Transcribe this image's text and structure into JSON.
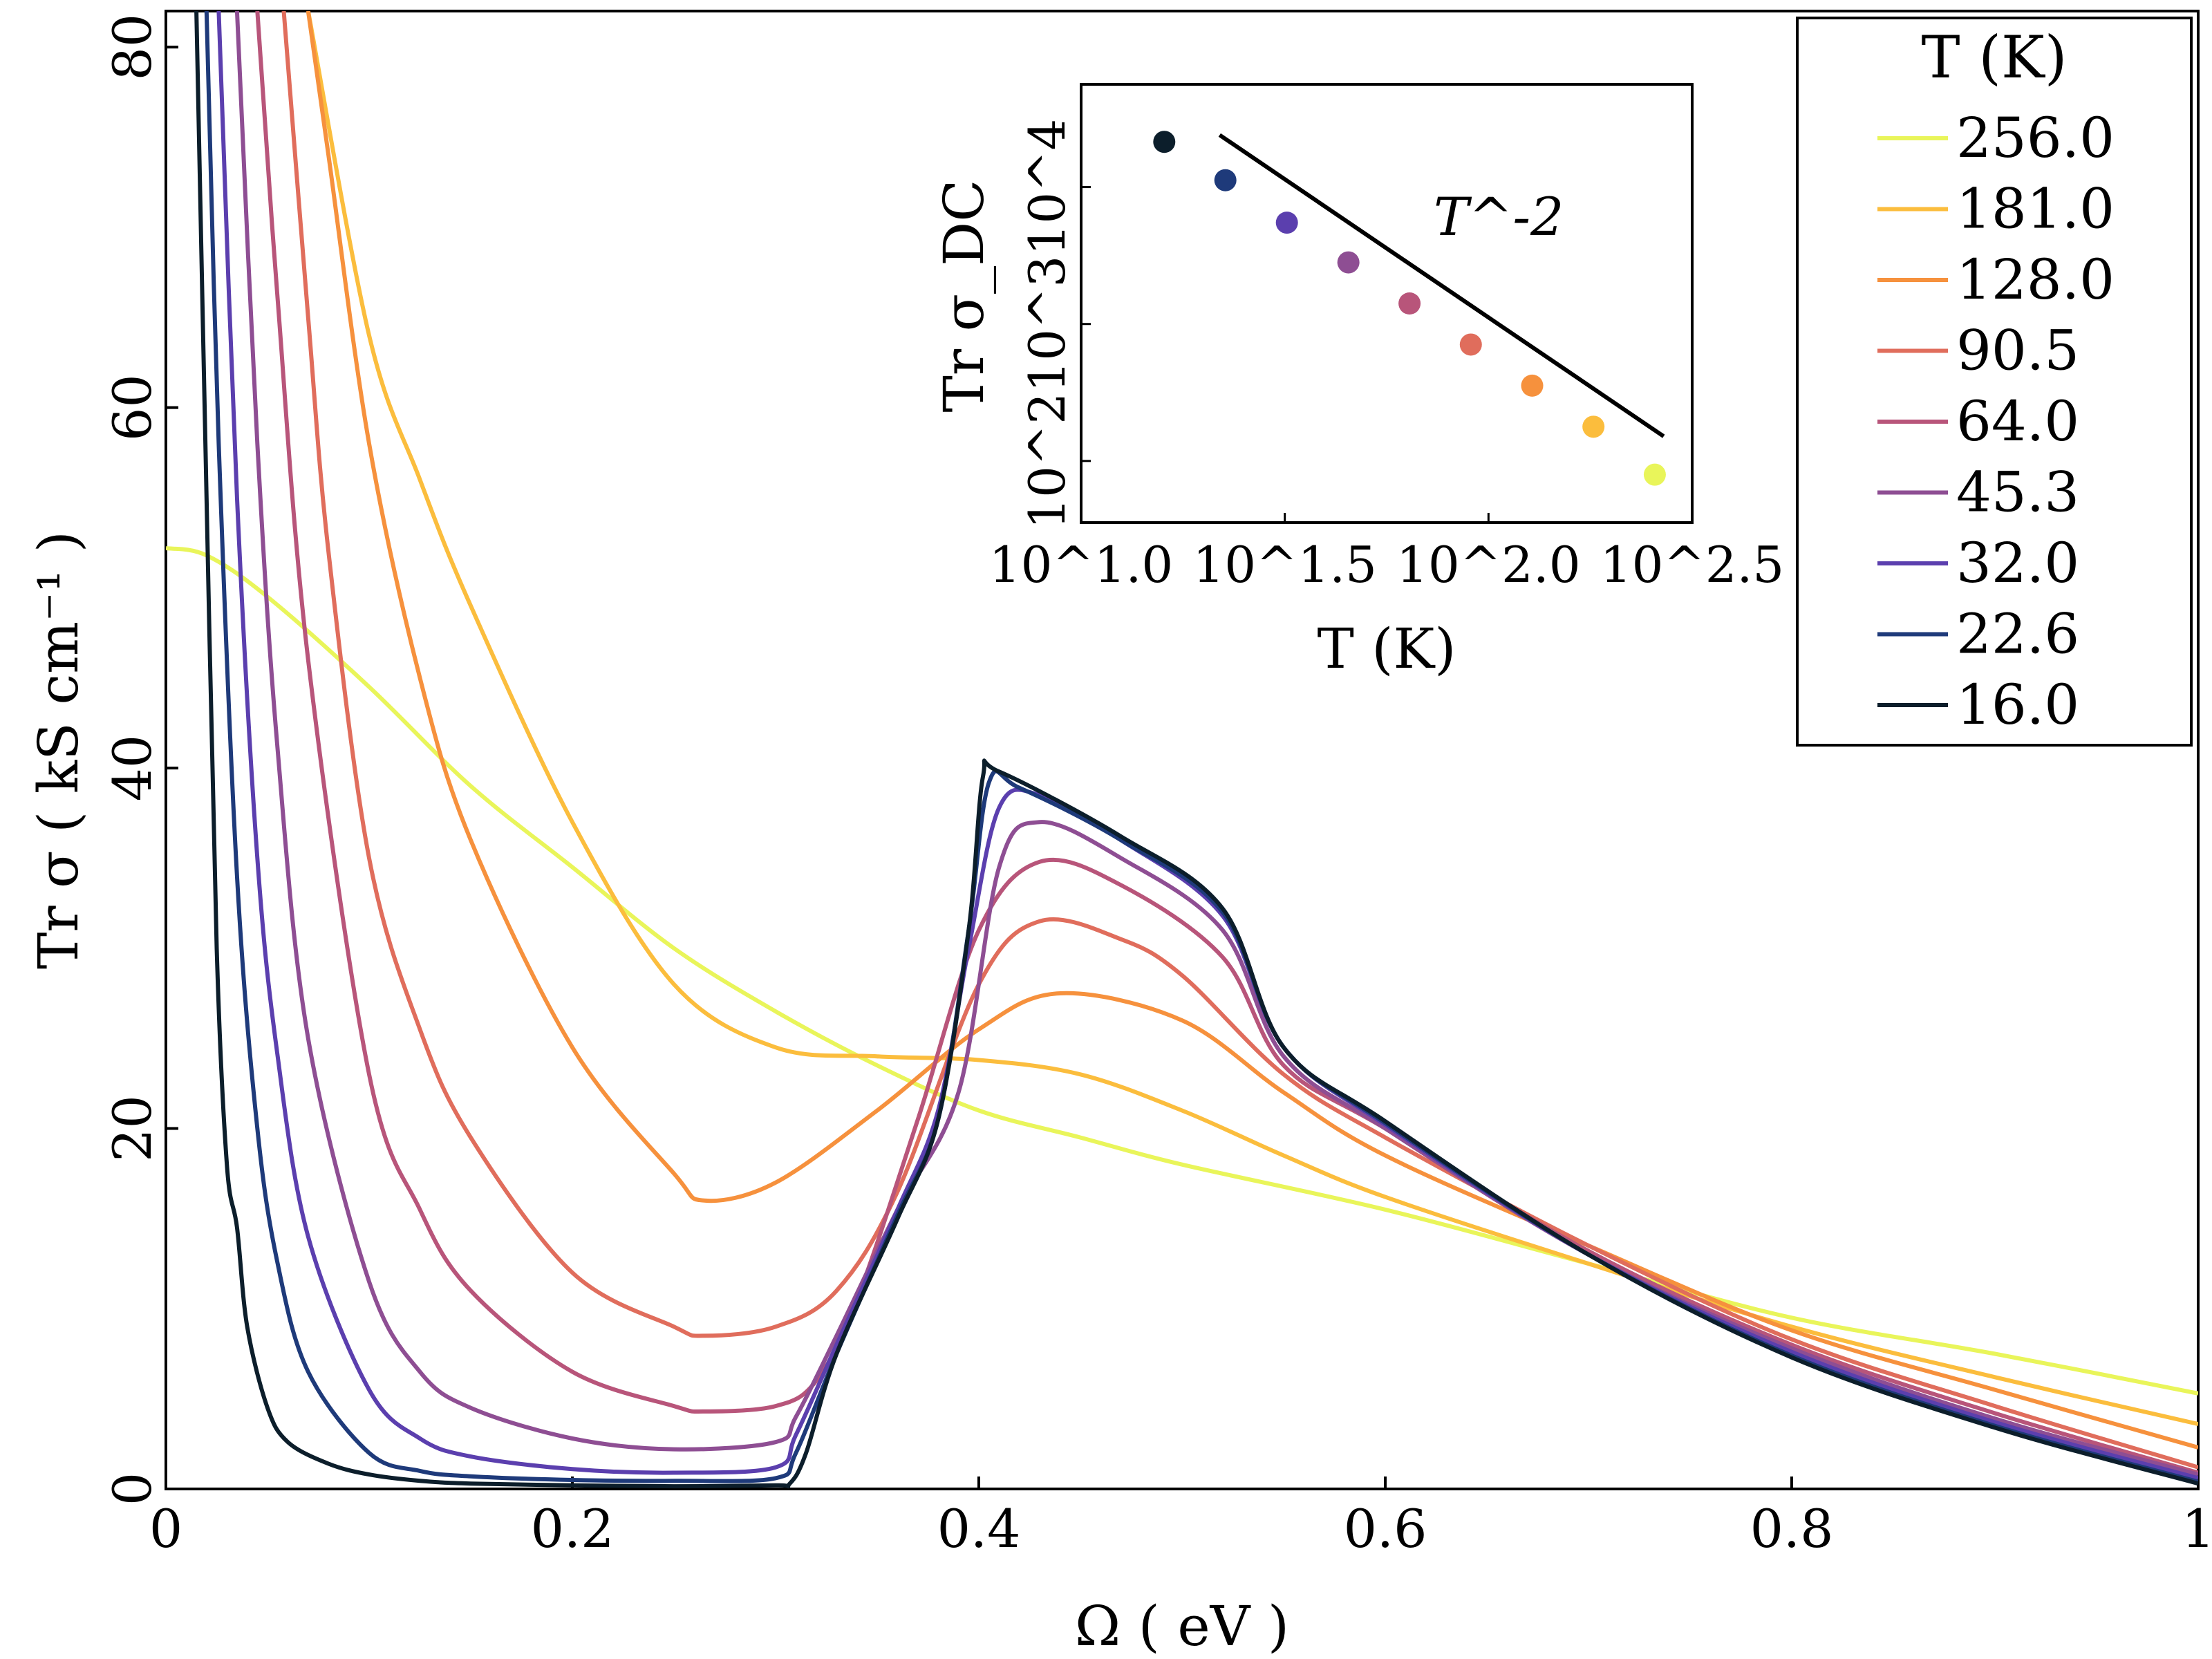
{
  "chart_data": [
    {
      "type": "line",
      "title": "",
      "xlabel": "Ω ( eV )",
      "ylabel": "Tr σ ( kS cm⁻¹ )",
      "xlim": [
        0,
        1
      ],
      "ylim": [
        0,
        82
      ],
      "xticks": [
        0,
        0.2,
        0.4,
        0.6,
        0.8,
        1
      ],
      "xtick_labels": [
        "0",
        "0.2",
        "0.4",
        "0.6",
        "0.8",
        "1"
      ],
      "yticks": [
        0,
        20,
        40,
        60,
        80
      ],
      "ytick_labels": [
        "0",
        "20",
        "40",
        "60",
        "80"
      ],
      "grid": false,
      "legend": {
        "title": "T (K)",
        "placement": "top-right",
        "entries": [
          "256.0",
          "181.0",
          "128.0",
          "90.5",
          "64.0",
          "45.3",
          "32.0",
          "22.6",
          "16.0"
        ]
      },
      "series": [
        {
          "name": "256.0",
          "color": "#e9f55a",
          "x": [
            0,
            0.02,
            0.05,
            0.1,
            0.15,
            0.2,
            0.25,
            0.3,
            0.35,
            0.4,
            0.45,
            0.5,
            0.6,
            0.7,
            0.8,
            0.9,
            1.0
          ],
          "y": [
            52.2,
            51.8,
            49.5,
            44.5,
            39.0,
            34.5,
            30.0,
            26.5,
            23.5,
            21.0,
            19.5,
            18.0,
            15.5,
            12.5,
            9.5,
            7.5,
            5.3
          ]
        },
        {
          "name": "181.0",
          "color": "#fbbd3d",
          "x": [
            0.07,
            0.1,
            0.125,
            0.15,
            0.2,
            0.25,
            0.3,
            0.35,
            0.4,
            0.45,
            0.5,
            0.55,
            0.6,
            0.7,
            0.8,
            0.9,
            1.0
          ],
          "y": [
            82,
            64,
            56,
            49,
            37,
            28,
            24.5,
            24.0,
            23.8,
            23.0,
            21.0,
            18.5,
            16.2,
            12.5,
            9.0,
            6.2,
            3.6
          ]
        },
        {
          "name": "128.0",
          "color": "#f6913d",
          "x": [
            0.07,
            0.08,
            0.1,
            0.125,
            0.15,
            0.2,
            0.25,
            0.265,
            0.3,
            0.35,
            0.4,
            0.44,
            0.5,
            0.55,
            0.6,
            0.7,
            0.8,
            0.9,
            1.0
          ],
          "y": [
            82,
            74,
            58,
            45,
            36,
            24.5,
            17.5,
            16.0,
            17.0,
            21.0,
            25.5,
            27.5,
            26.0,
            22.0,
            18.5,
            13.5,
            8.8,
            5.5,
            2.3
          ]
        },
        {
          "name": "90.5",
          "color": "#e06d5c",
          "x": [
            0.058,
            0.07,
            0.08,
            0.1,
            0.125,
            0.15,
            0.2,
            0.25,
            0.265,
            0.3,
            0.33,
            0.36,
            0.4,
            0.43,
            0.47,
            0.5,
            0.55,
            0.6,
            0.7,
            0.8,
            0.9,
            1.0
          ],
          "y": [
            82,
            65,
            52,
            35,
            25.5,
            19.5,
            12.0,
            9.0,
            8.5,
            9.0,
            11.0,
            16.5,
            28.0,
            31.5,
            30.5,
            28.5,
            23.0,
            19.5,
            13.5,
            8.3,
            4.6,
            1.2
          ]
        },
        {
          "name": "64.0",
          "color": "#b8557a",
          "x": [
            0.045,
            0.055,
            0.07,
            0.1,
            0.125,
            0.15,
            0.2,
            0.25,
            0.265,
            0.3,
            0.32,
            0.34,
            0.37,
            0.4,
            0.43,
            0.47,
            0.52,
            0.55,
            0.6,
            0.7,
            0.8,
            0.9,
            1.0
          ],
          "y": [
            82,
            66,
            46,
            23,
            15.5,
            11.0,
            6.5,
            4.6,
            4.3,
            4.6,
            6.0,
            10.5,
            20.5,
            31.0,
            34.8,
            33.5,
            29.5,
            23.5,
            20.0,
            13.2,
            8.0,
            4.2,
            0.9
          ]
        },
        {
          "name": "45.3",
          "color": "#8e4e93",
          "x": [
            0.035,
            0.045,
            0.055,
            0.07,
            0.1,
            0.125,
            0.15,
            0.2,
            0.25,
            0.3,
            0.31,
            0.33,
            0.36,
            0.39,
            0.41,
            0.43,
            0.47,
            0.52,
            0.55,
            0.6,
            0.7,
            0.8,
            0.9,
            1.0
          ],
          "y": [
            82,
            58,
            41,
            25,
            11.5,
            6.5,
            4.5,
            2.8,
            2.2,
            2.6,
            4.0,
            8.5,
            15.5,
            22.0,
            34.5,
            37.0,
            35.0,
            31.0,
            24.0,
            20.0,
            13.0,
            7.8,
            3.9,
            0.8
          ]
        },
        {
          "name": "32.0",
          "color": "#5b3fae",
          "x": [
            0.026,
            0.035,
            0.045,
            0.055,
            0.07,
            0.1,
            0.125,
            0.15,
            0.2,
            0.25,
            0.3,
            0.31,
            0.33,
            0.36,
            0.38,
            0.395,
            0.41,
            0.43,
            0.47,
            0.52,
            0.55,
            0.6,
            0.7,
            0.8,
            0.9,
            1.0
          ],
          "y": [
            82,
            55,
            35,
            24,
            14,
            5.5,
            2.8,
            1.8,
            1.1,
            0.9,
            1.2,
            3.0,
            8.0,
            15.5,
            21.0,
            30.0,
            37.8,
            38.5,
            36.0,
            31.8,
            24.5,
            20.2,
            13.0,
            7.6,
            3.7,
            0.6
          ]
        },
        {
          "name": "22.6",
          "color": "#1e3a7a",
          "x": [
            0.02,
            0.026,
            0.035,
            0.045,
            0.055,
            0.07,
            0.1,
            0.125,
            0.15,
            0.2,
            0.25,
            0.3,
            0.31,
            0.33,
            0.36,
            0.38,
            0.395,
            0.405,
            0.42,
            0.47,
            0.52,
            0.55,
            0.6,
            0.7,
            0.8,
            0.9,
            1.0
          ],
          "y": [
            82,
            58,
            34,
            20,
            12.5,
            6.5,
            2.0,
            1.0,
            0.7,
            0.5,
            0.45,
            0.6,
            2.0,
            7.5,
            15.2,
            20.5,
            31.0,
            39.2,
            38.9,
            36.0,
            32.0,
            24.5,
            20.3,
            13.0,
            7.4,
            3.5,
            0.4
          ]
        },
        {
          "name": "16.0",
          "color": "#0c1e2b",
          "x": [
            0.015,
            0.02,
            0.025,
            0.03,
            0.035,
            0.04,
            0.05,
            0.06,
            0.08,
            0.1,
            0.125,
            0.15,
            0.2,
            0.25,
            0.3,
            0.307,
            0.315,
            0.33,
            0.36,
            0.38,
            0.395,
            0.402,
            0.41,
            0.47,
            0.52,
            0.55,
            0.6,
            0.7,
            0.8,
            0.9,
            1.0
          ],
          "y": [
            82,
            55,
            30,
            18,
            14.5,
            9.0,
            4.5,
            2.6,
            1.4,
            0.8,
            0.45,
            0.3,
            0.2,
            0.15,
            0.2,
            0.3,
            2.0,
            7.5,
            15.0,
            20.5,
            31.0,
            39.5,
            39.8,
            36.2,
            32.2,
            24.5,
            20.4,
            13.0,
            7.3,
            3.4,
            0.3
          ]
        }
      ]
    },
    {
      "type": "scatter",
      "title": "",
      "xlabel": "T (K)",
      "ylabel": "Tr σ_DC",
      "xscale": "log",
      "yscale": "log",
      "xlim_log10": [
        1.0,
        2.5
      ],
      "ylim_log10": [
        1.55,
        4.75
      ],
      "xtick_labels": [
        "10^1.0",
        "10^1.5",
        "10^2.0",
        "10^2.5"
      ],
      "ytick_labels": [
        "10^2",
        "10^3",
        "10^4"
      ],
      "points": [
        {
          "T": 16.0,
          "log10_sigma": 4.33,
          "color": "#0c1e2b"
        },
        {
          "T": 22.6,
          "log10_sigma": 4.05,
          "color": "#1e3a7a"
        },
        {
          "T": 32.0,
          "log10_sigma": 3.74,
          "color": "#5b3fae"
        },
        {
          "T": 45.3,
          "log10_sigma": 3.45,
          "color": "#8e4e93"
        },
        {
          "T": 64.0,
          "log10_sigma": 3.15,
          "color": "#b8557a"
        },
        {
          "T": 90.5,
          "log10_sigma": 2.85,
          "color": "#e06d5c"
        },
        {
          "T": 128.0,
          "log10_sigma": 2.55,
          "color": "#f6913d"
        },
        {
          "T": 181.0,
          "log10_sigma": 2.25,
          "color": "#fbbd3d"
        },
        {
          "T": 256.0,
          "log10_sigma": 1.9,
          "color": "#e9f55a"
        }
      ],
      "reference_line": {
        "label": "T^-2",
        "slope": -2,
        "log10_x": [
          1.34,
          2.43
        ],
        "log10_y": [
          4.38,
          2.18
        ]
      }
    }
  ]
}
